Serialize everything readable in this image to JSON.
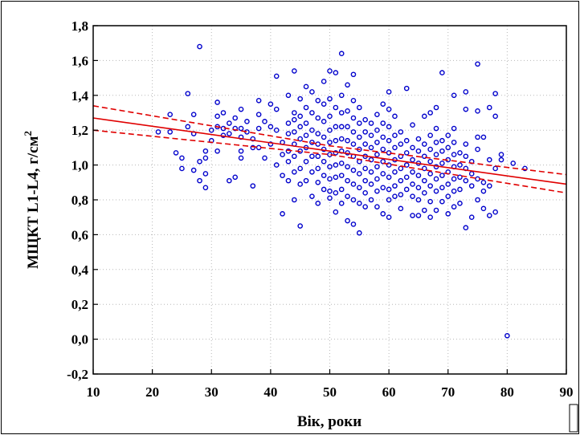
{
  "chart_data": {
    "type": "scatter",
    "title": "",
    "xlabel": "Вік, роки",
    "ylabel_main": "МЩКТ L1-L4, г/см",
    "ylabel_sup": "2",
    "xlim": [
      10,
      90
    ],
    "ylim": [
      -0.2,
      1.8
    ],
    "x_ticks": [
      10,
      20,
      30,
      40,
      50,
      60,
      70,
      80,
      90
    ],
    "y_ticks": [
      -0.2,
      0.0,
      0.2,
      0.4,
      0.6,
      0.8,
      1.0,
      1.2,
      1.4,
      1.6,
      1.8
    ],
    "x_tick_labels": [
      "10",
      "20",
      "30",
      "40",
      "50",
      "60",
      "70",
      "80",
      "90"
    ],
    "y_tick_labels": [
      "-0,2",
      "0,0",
      "0,2",
      "0,4",
      "0,6",
      "0,8",
      "1,0",
      "1,2",
      "1,4",
      "1,6",
      "1,8"
    ],
    "grid": true,
    "colors": {
      "points": "#0000cc",
      "fit": "#e00000",
      "frame": "#000000"
    },
    "regression": {
      "x": [
        10,
        90
      ],
      "y": [
        1.27,
        0.89
      ]
    },
    "confidence_upper": {
      "x": [
        10,
        50,
        90
      ],
      "y": [
        1.34,
        1.11,
        0.945
      ]
    },
    "confidence_lower": {
      "x": [
        10,
        50,
        90
      ],
      "y": [
        1.2,
        1.06,
        0.84
      ]
    },
    "points": [
      [
        21,
        1.19
      ],
      [
        23,
        1.19
      ],
      [
        23,
        1.29
      ],
      [
        24,
        1.07
      ],
      [
        25,
        1.04
      ],
      [
        25,
        0.98
      ],
      [
        26,
        1.41
      ],
      [
        26,
        1.22
      ],
      [
        27,
        1.18
      ],
      [
        27,
        1.29
      ],
      [
        27,
        0.97
      ],
      [
        28,
        1.68
      ],
      [
        28,
        0.91
      ],
      [
        28,
        1.02
      ],
      [
        29,
        0.95
      ],
      [
        29,
        0.87
      ],
      [
        29,
        1.08
      ],
      [
        29,
        1.04
      ],
      [
        30,
        1.14
      ],
      [
        30,
        1.2
      ],
      [
        31,
        1.36
      ],
      [
        31,
        1.28
      ],
      [
        31,
        1.22
      ],
      [
        31,
        1.08
      ],
      [
        32,
        1.21
      ],
      [
        32,
        1.17
      ],
      [
        32,
        1.3
      ],
      [
        33,
        1.24
      ],
      [
        33,
        1.18
      ],
      [
        33,
        0.91
      ],
      [
        34,
        0.93
      ],
      [
        34,
        1.27
      ],
      [
        34,
        1.21
      ],
      [
        35,
        1.32
      ],
      [
        35,
        1.21
      ],
      [
        35,
        1.16
      ],
      [
        35,
        1.04
      ],
      [
        35,
        1.08
      ],
      [
        36,
        1.25
      ],
      [
        36,
        1.19
      ],
      [
        37,
        1.1
      ],
      [
        37,
        0.88
      ],
      [
        37,
        1.15
      ],
      [
        38,
        1.37
      ],
      [
        38,
        1.29
      ],
      [
        38,
        1.21
      ],
      [
        38,
        1.1
      ],
      [
        39,
        1.04
      ],
      [
        39,
        1.25
      ],
      [
        40,
        1.35
      ],
      [
        40,
        1.22
      ],
      [
        40,
        1.12
      ],
      [
        41,
        1.51
      ],
      [
        41,
        1.32
      ],
      [
        41,
        1.2
      ],
      [
        41,
        1.0
      ],
      [
        42,
        1.13
      ],
      [
        42,
        0.94
      ],
      [
        42,
        0.72
      ],
      [
        42,
        1.06
      ],
      [
        43,
        1.4
      ],
      [
        43,
        1.24
      ],
      [
        43,
        1.18
      ],
      [
        43,
        1.08
      ],
      [
        43,
        0.91
      ],
      [
        43,
        1.02
      ],
      [
        44,
        1.54
      ],
      [
        44,
        1.3
      ],
      [
        44,
        1.26
      ],
      [
        44,
        1.19
      ],
      [
        44,
        1.12
      ],
      [
        44,
        1.05
      ],
      [
        44,
        0.96
      ],
      [
        44,
        0.8
      ],
      [
        45,
        1.38
      ],
      [
        45,
        1.28
      ],
      [
        45,
        1.22
      ],
      [
        45,
        1.15
      ],
      [
        45,
        1.08
      ],
      [
        45,
        0.98
      ],
      [
        45,
        0.89
      ],
      [
        45,
        0.65
      ],
      [
        46,
        1.45
      ],
      [
        46,
        1.33
      ],
      [
        46,
        1.24
      ],
      [
        46,
        1.17
      ],
      [
        46,
        1.1
      ],
      [
        46,
        1.02
      ],
      [
        46,
        0.91
      ],
      [
        47,
        1.42
      ],
      [
        47,
        1.3
      ],
      [
        47,
        1.2
      ],
      [
        47,
        1.13
      ],
      [
        47,
        1.05
      ],
      [
        47,
        0.96
      ],
      [
        47,
        0.82
      ],
      [
        48,
        1.37
      ],
      [
        48,
        1.27
      ],
      [
        48,
        1.18
      ],
      [
        48,
        1.12
      ],
      [
        48,
        1.05
      ],
      [
        48,
        0.98
      ],
      [
        48,
        0.9
      ],
      [
        48,
        0.78
      ],
      [
        49,
        1.48
      ],
      [
        49,
        1.35
      ],
      [
        49,
        1.25
      ],
      [
        49,
        1.16
      ],
      [
        49,
        1.09
      ],
      [
        49,
        1.02
      ],
      [
        49,
        0.94
      ],
      [
        49,
        0.86
      ],
      [
        50,
        1.54
      ],
      [
        50,
        1.38
      ],
      [
        50,
        1.28
      ],
      [
        50,
        1.2
      ],
      [
        50,
        1.13
      ],
      [
        50,
        1.06
      ],
      [
        50,
        0.99
      ],
      [
        50,
        0.92
      ],
      [
        50,
        0.85
      ],
      [
        50,
        0.81
      ],
      [
        51,
        1.53
      ],
      [
        51,
        1.33
      ],
      [
        51,
        1.22
      ],
      [
        51,
        1.14
      ],
      [
        51,
        1.07
      ],
      [
        51,
        1.0
      ],
      [
        51,
        0.93
      ],
      [
        51,
        0.84
      ],
      [
        51,
        0.73
      ],
      [
        52,
        1.64
      ],
      [
        52,
        1.4
      ],
      [
        52,
        1.3
      ],
      [
        52,
        1.22
      ],
      [
        52,
        1.15
      ],
      [
        52,
        1.08
      ],
      [
        52,
        1.01
      ],
      [
        52,
        0.94
      ],
      [
        52,
        0.86
      ],
      [
        52,
        0.78
      ],
      [
        53,
        1.46
      ],
      [
        53,
        1.31
      ],
      [
        53,
        1.22
      ],
      [
        53,
        1.14
      ],
      [
        53,
        1.07
      ],
      [
        53,
        0.99
      ],
      [
        53,
        0.91
      ],
      [
        53,
        0.82
      ],
      [
        53,
        0.68
      ],
      [
        54,
        1.52
      ],
      [
        54,
        1.37
      ],
      [
        54,
        1.27
      ],
      [
        54,
        1.19
      ],
      [
        54,
        1.12
      ],
      [
        54,
        1.05
      ],
      [
        54,
        0.97
      ],
      [
        54,
        0.89
      ],
      [
        54,
        0.8
      ],
      [
        54,
        0.66
      ],
      [
        55,
        1.33
      ],
      [
        55,
        1.24
      ],
      [
        55,
        1.16
      ],
      [
        55,
        1.09
      ],
      [
        55,
        1.02
      ],
      [
        55,
        0.95
      ],
      [
        55,
        0.87
      ],
      [
        55,
        0.78
      ],
      [
        55,
        0.61
      ],
      [
        56,
        1.26
      ],
      [
        56,
        1.19
      ],
      [
        56,
        1.12
      ],
      [
        56,
        1.05
      ],
      [
        56,
        0.98
      ],
      [
        56,
        0.91
      ],
      [
        56,
        0.84
      ],
      [
        56,
        0.76
      ],
      [
        57,
        1.24
      ],
      [
        57,
        1.17
      ],
      [
        57,
        1.1
      ],
      [
        57,
        1.03
      ],
      [
        57,
        0.96
      ],
      [
        57,
        0.89
      ],
      [
        57,
        0.8
      ],
      [
        58,
        1.29
      ],
      [
        58,
        1.2
      ],
      [
        58,
        1.13
      ],
      [
        58,
        1.06
      ],
      [
        58,
        0.99
      ],
      [
        58,
        0.92
      ],
      [
        58,
        0.85
      ],
      [
        58,
        0.76
      ],
      [
        59,
        1.35
      ],
      [
        59,
        1.24
      ],
      [
        59,
        1.16
      ],
      [
        59,
        1.09
      ],
      [
        59,
        1.02
      ],
      [
        59,
        0.95
      ],
      [
        59,
        0.87
      ],
      [
        59,
        0.72
      ],
      [
        60,
        1.42
      ],
      [
        60,
        1.32
      ],
      [
        60,
        1.22
      ],
      [
        60,
        1.14
      ],
      [
        60,
        1.07
      ],
      [
        60,
        1.0
      ],
      [
        60,
        0.93
      ],
      [
        60,
        0.86
      ],
      [
        60,
        0.8
      ],
      [
        60,
        0.7
      ],
      [
        61,
        1.28
      ],
      [
        61,
        1.17
      ],
      [
        61,
        1.1
      ],
      [
        61,
        1.03
      ],
      [
        61,
        0.96
      ],
      [
        61,
        0.88
      ],
      [
        61,
        0.82
      ],
      [
        62,
        1.19
      ],
      [
        62,
        1.12
      ],
      [
        62,
        1.05
      ],
      [
        62,
        0.98
      ],
      [
        62,
        0.91
      ],
      [
        62,
        0.83
      ],
      [
        62,
        0.75
      ],
      [
        63,
        1.44
      ],
      [
        63,
        1.14
      ],
      [
        63,
        1.07
      ],
      [
        63,
        1.0
      ],
      [
        63,
        0.93
      ],
      [
        63,
        0.86
      ],
      [
        64,
        1.23
      ],
      [
        64,
        1.1
      ],
      [
        64,
        1.03
      ],
      [
        64,
        0.96
      ],
      [
        64,
        0.89
      ],
      [
        64,
        0.82
      ],
      [
        64,
        0.71
      ],
      [
        65,
        1.15
      ],
      [
        65,
        1.08
      ],
      [
        65,
        1.01
      ],
      [
        65,
        0.94
      ],
      [
        65,
        0.87
      ],
      [
        65,
        0.8
      ],
      [
        65,
        0.71
      ],
      [
        66,
        1.28
      ],
      [
        66,
        1.12
      ],
      [
        66,
        1.05
      ],
      [
        66,
        0.98
      ],
      [
        66,
        0.91
      ],
      [
        66,
        0.84
      ],
      [
        66,
        0.74
      ],
      [
        67,
        1.3
      ],
      [
        67,
        1.17
      ],
      [
        67,
        1.09
      ],
      [
        67,
        1.02
      ],
      [
        67,
        0.95
      ],
      [
        67,
        0.88
      ],
      [
        67,
        0.79
      ],
      [
        67,
        0.7
      ],
      [
        68,
        1.33
      ],
      [
        68,
        1.21
      ],
      [
        68,
        1.13
      ],
      [
        68,
        1.06
      ],
      [
        68,
        0.99
      ],
      [
        68,
        0.92
      ],
      [
        68,
        0.85
      ],
      [
        68,
        0.74
      ],
      [
        69,
        1.53
      ],
      [
        69,
        1.14
      ],
      [
        69,
        1.08
      ],
      [
        69,
        1.01
      ],
      [
        69,
        0.94
      ],
      [
        69,
        0.87
      ],
      [
        69,
        0.79
      ],
      [
        70,
        1.17
      ],
      [
        70,
        1.1
      ],
      [
        70,
        1.03
      ],
      [
        70,
        0.96
      ],
      [
        70,
        0.89
      ],
      [
        70,
        0.82
      ],
      [
        70,
        0.72
      ],
      [
        71,
        1.4
      ],
      [
        71,
        1.21
      ],
      [
        71,
        1.13
      ],
      [
        71,
        1.06
      ],
      [
        71,
        0.99
      ],
      [
        71,
        0.92
      ],
      [
        71,
        0.85
      ],
      [
        71,
        0.76
      ],
      [
        72,
        1.07
      ],
      [
        72,
        1.0
      ],
      [
        72,
        0.93
      ],
      [
        72,
        0.86
      ],
      [
        72,
        0.78
      ],
      [
        73,
        1.42
      ],
      [
        73,
        1.32
      ],
      [
        73,
        1.12
      ],
      [
        73,
        1.05
      ],
      [
        73,
        0.98
      ],
      [
        73,
        0.91
      ],
      [
        73,
        0.64
      ],
      [
        74,
        1.02
      ],
      [
        74,
        0.95
      ],
      [
        74,
        0.88
      ],
      [
        74,
        0.7
      ],
      [
        75,
        1.58
      ],
      [
        75,
        1.31
      ],
      [
        75,
        1.16
      ],
      [
        75,
        1.09
      ],
      [
        75,
        0.92
      ],
      [
        75,
        0.8
      ],
      [
        76,
        1.16
      ],
      [
        76,
        0.9
      ],
      [
        76,
        0.85
      ],
      [
        76,
        0.75
      ],
      [
        77,
        1.33
      ],
      [
        77,
        1.03
      ],
      [
        77,
        0.88
      ],
      [
        77,
        0.71
      ],
      [
        78,
        1.41
      ],
      [
        78,
        1.28
      ],
      [
        78,
        0.98
      ],
      [
        78,
        0.73
      ],
      [
        79,
        1.06
      ],
      [
        79,
        1.03
      ],
      [
        80,
        0.02
      ],
      [
        81,
        1.01
      ],
      [
        83,
        0.98
      ]
    ]
  }
}
